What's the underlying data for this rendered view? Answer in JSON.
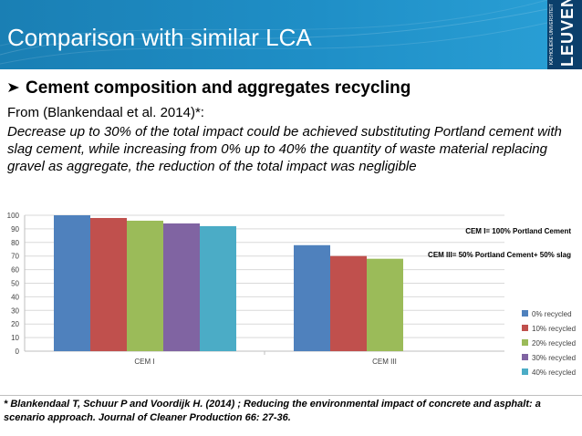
{
  "header": {
    "title": "Comparison with similar LCA",
    "logo_main": "LEUVEN",
    "logo_sub": "KATHOLIEKE UNIVERSITEIT"
  },
  "section": {
    "heading": "Cement composition and aggregates recycling",
    "bullet_icon": "arrow-bullet-icon",
    "from_line": "From (Blankendaal et al. 2014)*:",
    "description": "Decrease up to 30% of the total impact could be achieved substituting Portland cement with slag cement, while increasing from 0% up to 40% the quantity of waste material replacing gravel as aggregate, the reduction of the total impact was negligible"
  },
  "chart_data": {
    "type": "bar",
    "categories": [
      "CEM I",
      "CEM III"
    ],
    "series": [
      {
        "name": "0% recycled",
        "color": "#4f81bd",
        "values": [
          100,
          78
        ]
      },
      {
        "name": "10% recycled",
        "color": "#c0504d",
        "values": [
          98,
          70
        ]
      },
      {
        "name": "20% recycled",
        "color": "#9bbb59",
        "values": [
          96,
          68
        ]
      },
      {
        "name": "30% recycled",
        "color": "#8064a2",
        "values": [
          94,
          null
        ]
      },
      {
        "name": "40% recycled",
        "color": "#4bacc6",
        "values": [
          92,
          null
        ]
      }
    ],
    "ylim": [
      0,
      100
    ],
    "yticks": [
      0,
      10,
      20,
      30,
      40,
      50,
      60,
      70,
      80,
      90,
      100
    ],
    "grid": true,
    "legend": "right",
    "annotations": [
      "CEM I= 100% Portland Cement",
      "CEM III= 50% Portland Cement+ 50% slag"
    ]
  },
  "footnote": "* Blankendaal T, Schuur P and Voordijk H. (2014) ; Reducing the environmental impact of concrete and asphalt: a scenario approach. Journal of Cleaner Production 66: 27-36."
}
